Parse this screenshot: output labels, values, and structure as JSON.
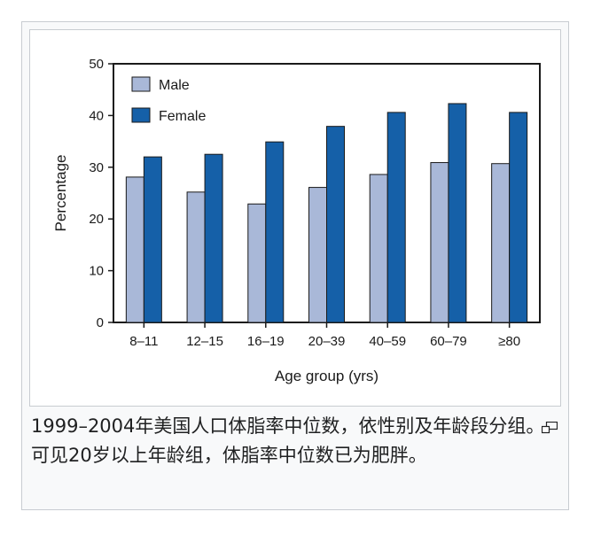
{
  "chart_data": {
    "type": "bar",
    "categories": [
      "8–11",
      "12–15",
      "16–19",
      "20–39",
      "40–59",
      "60–79",
      "≥80"
    ],
    "series": [
      {
        "name": "Male",
        "values": [
          28.1,
          25.2,
          22.9,
          26.1,
          28.6,
          30.9,
          30.7
        ]
      },
      {
        "name": "Female",
        "values": [
          32.0,
          32.5,
          34.9,
          37.9,
          40.6,
          42.3,
          40.6
        ]
      }
    ],
    "xlabel": "Age group (yrs)",
    "ylabel": "Percentage",
    "ylim": [
      0,
      50
    ],
    "yticks": [
      0,
      10,
      20,
      30,
      40,
      50
    ],
    "legend_position": "top-left",
    "grid": false,
    "colors": {
      "Male": "#a9b8d8",
      "Female": "#1560a8"
    }
  },
  "caption": {
    "text": "1999–2004年美国人口体脂率中位数，依性别及年龄段分组。可见20岁以上年龄组，体脂率中位数已为肥胖。"
  },
  "icons": {
    "magnify": "magnify-icon"
  }
}
